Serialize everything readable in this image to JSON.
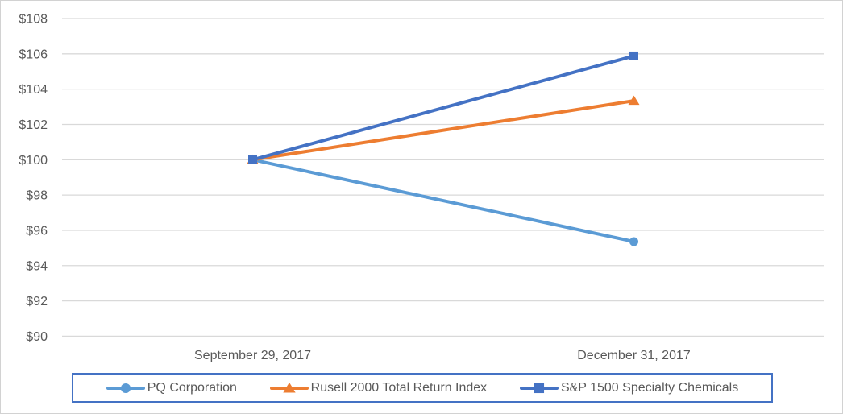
{
  "chart_data": {
    "type": "line",
    "title": "",
    "categories": [
      "September 29, 2017",
      "December 31, 2017"
    ],
    "series": [
      {
        "name": "PQ Corporation",
        "marker": "circle",
        "color": "#5B9BD5",
        "values": [
          100,
          95.36
        ]
      },
      {
        "name": "Rusell 2000 Total Return Index",
        "marker": "triangle",
        "color": "#ED7D31",
        "values": [
          100,
          103.34
        ]
      },
      {
        "name": "S&P 1500 Specialty Chemicals",
        "marker": "square",
        "color": "#4472C4",
        "values": [
          100,
          105.88
        ]
      }
    ],
    "ylim": [
      90,
      108
    ],
    "y_tick_step": 2,
    "y_tick_prefix": "$",
    "grid": true,
    "legend_position": "bottom"
  },
  "colors": {
    "gridline": "#D9D9D9",
    "axis_text": "#595959",
    "legend_border": "#4472C4",
    "frame_border": "#D2D2D2",
    "background": "#FFFFFF"
  }
}
